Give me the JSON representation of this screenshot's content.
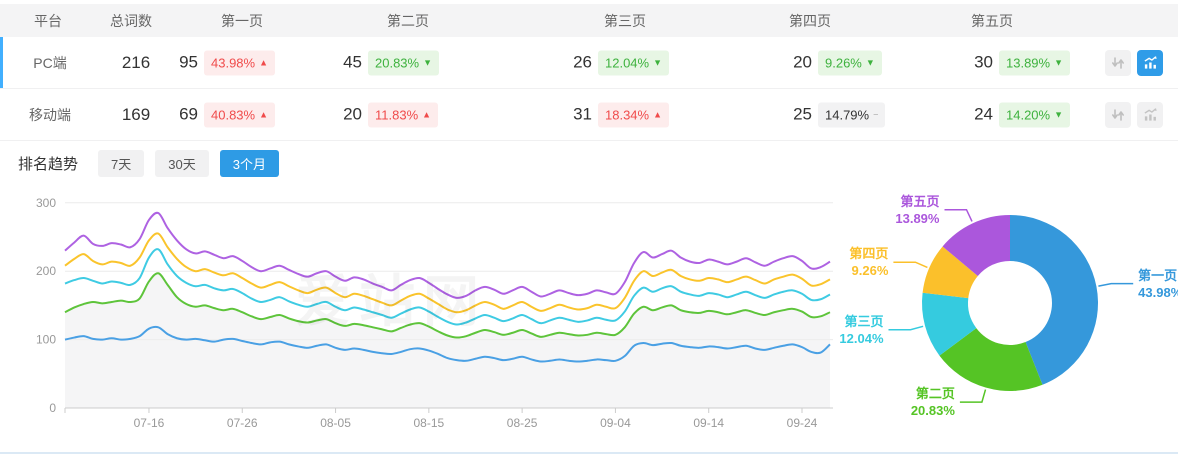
{
  "colors": {
    "accent_blue": "#2e9be5",
    "row_accent": "#41affe",
    "badge_red": "#f04b4b",
    "badge_green": "#3eb23e",
    "icon_active_bg": "#2f9ce8"
  },
  "table": {
    "headers": [
      "平台",
      "总词数",
      "第一页",
      "第二页",
      "第三页",
      "第四页",
      "第五页"
    ],
    "arrows": {
      "up": "▲",
      "down": "▼",
      "flat": "−"
    },
    "sort_icon_glyph": "↓↑",
    "rows": [
      {
        "platform": "PC端",
        "total": "216",
        "active": true,
        "chart_active": true,
        "pages": [
          {
            "count": "95",
            "pct": "43.98%",
            "dir": "up",
            "tone": "red"
          },
          {
            "count": "45",
            "pct": "20.83%",
            "dir": "down",
            "tone": "green"
          },
          {
            "count": "26",
            "pct": "12.04%",
            "dir": "down",
            "tone": "green"
          },
          {
            "count": "20",
            "pct": "9.26%",
            "dir": "down",
            "tone": "green"
          },
          {
            "count": "30",
            "pct": "13.89%",
            "dir": "down",
            "tone": "green"
          }
        ]
      },
      {
        "platform": "移动端",
        "total": "169",
        "active": false,
        "chart_active": false,
        "pages": [
          {
            "count": "69",
            "pct": "40.83%",
            "dir": "up",
            "tone": "red"
          },
          {
            "count": "20",
            "pct": "11.83%",
            "dir": "up",
            "tone": "red"
          },
          {
            "count": "31",
            "pct": "18.34%",
            "dir": "up",
            "tone": "red"
          },
          {
            "count": "25",
            "pct": "14.79%",
            "dir": "flat",
            "tone": "gray"
          },
          {
            "count": "24",
            "pct": "14.20%",
            "dir": "down",
            "tone": "green"
          }
        ]
      }
    ]
  },
  "trend": {
    "label": "排名趋势",
    "ranges": [
      {
        "label": "7天",
        "active": false
      },
      {
        "label": "30天",
        "active": false
      },
      {
        "label": "3个月",
        "active": true
      }
    ]
  },
  "watermark": "爱站网",
  "chart_data": [
    {
      "id": "rank-trend-line",
      "type": "line",
      "stacked": true,
      "note": "values are cumulative plotted y-positions (stacked pages count)",
      "y_ticks": [
        0,
        100,
        200,
        300
      ],
      "ylim": [
        0,
        300
      ],
      "grid": true,
      "x_ticks": [
        {
          "i": 9,
          "label": "07-16"
        },
        {
          "i": 19,
          "label": "07-26"
        },
        {
          "i": 29,
          "label": "08-05"
        },
        {
          "i": 39,
          "label": "08-15"
        },
        {
          "i": 49,
          "label": "08-25"
        },
        {
          "i": 59,
          "label": "09-04"
        },
        {
          "i": 69,
          "label": "09-14"
        },
        {
          "i": 79,
          "label": "09-24"
        }
      ],
      "series": [
        {
          "name": "第一页",
          "color": "#4aa0e4",
          "area": false,
          "values": [
            100,
            103,
            105,
            101,
            100,
            102,
            100,
            101,
            105,
            116,
            118,
            108,
            102,
            100,
            101,
            99,
            97,
            100,
            101,
            98,
            95,
            93,
            96,
            97,
            93,
            90,
            88,
            91,
            93,
            88,
            85,
            87,
            85,
            82,
            80,
            79,
            82,
            86,
            87,
            84,
            79,
            73,
            70,
            69,
            72,
            75,
            73,
            70,
            72,
            75,
            71,
            68,
            69,
            71,
            69,
            68,
            69,
            71,
            70,
            69,
            76,
            91,
            95,
            92,
            94,
            95,
            91,
            89,
            88,
            90,
            89,
            87,
            89,
            91,
            87,
            85,
            88,
            91,
            93,
            89,
            82,
            81,
            93
          ]
        },
        {
          "name": "第二页",
          "color": "#5ec43b",
          "area": true,
          "values": [
            140,
            147,
            152,
            155,
            153,
            155,
            157,
            155,
            160,
            185,
            197,
            180,
            162,
            152,
            148,
            150,
            146,
            143,
            145,
            140,
            134,
            130,
            133,
            136,
            131,
            127,
            125,
            128,
            130,
            124,
            120,
            123,
            121,
            118,
            115,
            112,
            117,
            122,
            124,
            119,
            112,
            106,
            103,
            105,
            110,
            114,
            111,
            107,
            110,
            114,
            109,
            104,
            107,
            110,
            108,
            106,
            107,
            110,
            108,
            107,
            118,
            138,
            148,
            143,
            147,
            150,
            143,
            140,
            139,
            142,
            140,
            137,
            140,
            143,
            139,
            136,
            140,
            143,
            145,
            141,
            133,
            134,
            140
          ]
        },
        {
          "name": "第三页",
          "color": "#3fcbe3",
          "area": false,
          "values": [
            182,
            187,
            190,
            186,
            182,
            185,
            183,
            180,
            190,
            220,
            232,
            210,
            193,
            183,
            178,
            180,
            175,
            172,
            174,
            168,
            160,
            155,
            158,
            162,
            156,
            151,
            148,
            152,
            155,
            148,
            143,
            147,
            144,
            140,
            136,
            132,
            138,
            144,
            147,
            141,
            133,
            126,
            122,
            125,
            131,
            136,
            132,
            127,
            131,
            136,
            130,
            124,
            128,
            132,
            129,
            126,
            128,
            132,
            129,
            128,
            141,
            164,
            176,
            170,
            175,
            178,
            170,
            166,
            164,
            168,
            166,
            162,
            166,
            170,
            165,
            161,
            166,
            170,
            172,
            167,
            158,
            159,
            166
          ]
        },
        {
          "name": "第四页",
          "color": "#fac42c",
          "area": false,
          "values": [
            208,
            218,
            225,
            215,
            210,
            214,
            212,
            208,
            220,
            245,
            255,
            235,
            218,
            206,
            200,
            203,
            198,
            194,
            197,
            190,
            182,
            176,
            180,
            184,
            178,
            172,
            168,
            173,
            176,
            168,
            162,
            167,
            164,
            159,
            154,
            150,
            157,
            164,
            167,
            160,
            152,
            144,
            140,
            143,
            150,
            155,
            151,
            145,
            150,
            155,
            148,
            142,
            146,
            151,
            147,
            144,
            146,
            151,
            148,
            146,
            161,
            186,
            200,
            193,
            198,
            202,
            193,
            188,
            186,
            190,
            188,
            184,
            188,
            192,
            187,
            182,
            188,
            192,
            195,
            189,
            179,
            181,
            188
          ]
        },
        {
          "name": "第五页",
          "color": "#ae62e2",
          "area": false,
          "values": [
            230,
            242,
            252,
            240,
            237,
            241,
            239,
            235,
            247,
            275,
            285,
            263,
            245,
            232,
            226,
            229,
            224,
            219,
            222,
            215,
            206,
            200,
            204,
            208,
            202,
            196,
            192,
            197,
            200,
            192,
            186,
            191,
            188,
            182,
            177,
            172,
            180,
            187,
            190,
            183,
            174,
            166,
            161,
            164,
            172,
            177,
            173,
            167,
            172,
            177,
            170,
            163,
            167,
            172,
            168,
            165,
            167,
            172,
            169,
            167,
            184,
            212,
            228,
            220,
            225,
            230,
            220,
            214,
            212,
            217,
            214,
            210,
            214,
            219,
            213,
            208,
            214,
            219,
            222,
            215,
            204,
            206,
            214
          ]
        }
      ]
    },
    {
      "id": "page-distribution-donut",
      "type": "pie",
      "donut": true,
      "slices": [
        {
          "name": "第一页",
          "pct": 43.98,
          "pct_label": "43.98%",
          "color": "#3598db"
        },
        {
          "name": "第二页",
          "pct": 20.83,
          "pct_label": "20.83%",
          "color": "#55c425"
        },
        {
          "name": "第三页",
          "pct": 12.04,
          "pct_label": "12.04%",
          "color": "#35cbdf"
        },
        {
          "name": "第四页",
          "pct": 9.26,
          "pct_label": "9.26%",
          "color": "#fbc02b"
        },
        {
          "name": "第五页",
          "pct": 13.89,
          "pct_label": "13.89%",
          "color": "#ab57dc"
        }
      ]
    }
  ]
}
